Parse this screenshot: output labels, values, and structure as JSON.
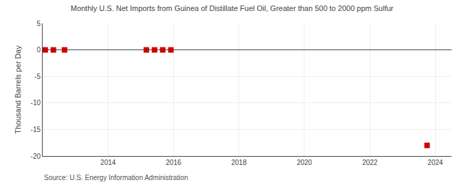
{
  "chart_data": {
    "type": "scatter",
    "title": "Monthly U.S. Net Imports from Guinea of Distillate Fuel Oil, Greater than 500 to 2000 ppm Sulfur",
    "ylabel": "Thousand Barrels per Day",
    "annotations": [
      "Source: U.S. Energy Information Administration"
    ],
    "x": [
      2012.08,
      2012.33,
      2012.67,
      2015.17,
      2015.42,
      2015.67,
      2015.92,
      2023.75
    ],
    "values": [
      0,
      0,
      0,
      0,
      0,
      0,
      0,
      -18
    ],
    "color": "#cc0000",
    "marker": "square",
    "xlim": [
      2012,
      2024.5
    ],
    "ylim": [
      -20,
      5
    ],
    "xticks": [
      2014,
      2016,
      2018,
      2020,
      2022,
      2024
    ],
    "yticks": [
      5,
      0,
      -5,
      -10,
      -15,
      -20
    ],
    "grid": true
  }
}
